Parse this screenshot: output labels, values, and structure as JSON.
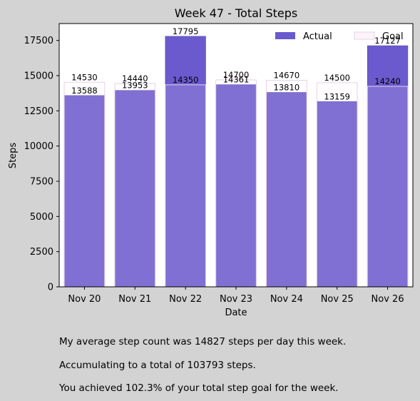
{
  "chart_data": {
    "type": "bar",
    "title": "Week 47 - Total Steps",
    "xlabel": "Date",
    "ylabel": "Steps",
    "ylim": [
      0,
      18700
    ],
    "yticks": [
      0,
      2500,
      5000,
      7500,
      10000,
      12500,
      15000,
      17500
    ],
    "categories": [
      "Nov 20",
      "Nov 21",
      "Nov 22",
      "Nov 23",
      "Nov 24",
      "Nov 25",
      "Nov 26"
    ],
    "series": [
      {
        "name": "Actual",
        "values": [
          13588,
          13953,
          17795,
          14361,
          13810,
          13159,
          17127
        ]
      },
      {
        "name": "Goal",
        "values": [
          14530,
          14440,
          14350,
          14700,
          14670,
          14500,
          14240
        ]
      }
    ],
    "legend_position": "top-right",
    "colors": {
      "actual": "#6a5acd",
      "goal": "#fcf3fb",
      "goal_edge": "#e8d2e6",
      "plot_bg": "#ffffff",
      "figure_bg": "#d3d3d3"
    }
  },
  "summary": {
    "line1": "My average step count was 14827 steps per day this week.",
    "line2": "Accumulating to a total of 103793 steps.",
    "line3": "You achieved 102.3% of your total step goal for the week."
  }
}
